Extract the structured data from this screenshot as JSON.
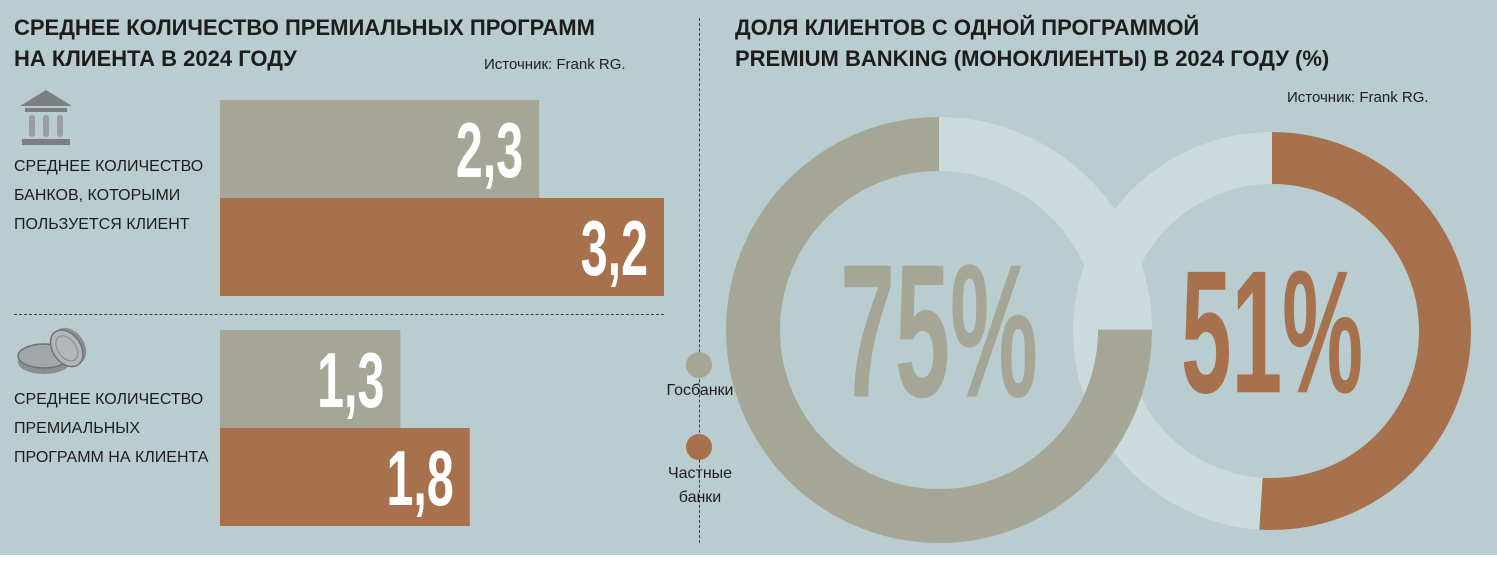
{
  "left_panel": {
    "title_line1": "Среднее количество премиальных программ",
    "title_line2": "на клиента в 2024 году",
    "source": "Источник: Frank RG."
  },
  "right_panel": {
    "title_line1": "Доля клиентов с одной программой",
    "title_line2": "Premium Banking (моноклиенты) в 2024 году (%)",
    "source": "Источник: Frank RG."
  },
  "legend": {
    "items": [
      {
        "label": "Госбанки",
        "color": "#a6a696"
      },
      {
        "label_line1": "Частные",
        "label_line2": "банки",
        "color": "#a8714d"
      }
    ]
  },
  "icons": [
    "bank-icon",
    "coins-icon"
  ],
  "colors": {
    "background": "#b9cccf",
    "state": "#a6a696",
    "private": "#a8714d",
    "ring_track": "#cbdadd",
    "text": "#1d1d1d"
  },
  "chart_data": [
    {
      "type": "bar",
      "orientation": "horizontal",
      "groups": [
        {
          "label_lines": [
            "Среднее количество",
            "банков, которыми",
            "пользуется клиент"
          ],
          "series": [
            {
              "name": "Госбанки",
              "value": 2.3,
              "display": "2,3"
            },
            {
              "name": "Частные банки",
              "value": 3.2,
              "display": "3,2"
            }
          ]
        },
        {
          "label_lines": [
            "Среднее количество",
            "премиальных",
            "программ на клиента"
          ],
          "series": [
            {
              "name": "Госбанки",
              "value": 1.3,
              "display": "1,3"
            },
            {
              "name": "Частные банки",
              "value": 1.8,
              "display": "1,8"
            }
          ]
        }
      ],
      "xlim": [
        0,
        3.2
      ]
    },
    {
      "type": "pie",
      "variant": "donut",
      "slices": [
        {
          "name": "Госбанки",
          "value": 75,
          "display": "75%"
        },
        {
          "name": "Частные банки",
          "value": 51,
          "display": "51%"
        }
      ]
    }
  ]
}
